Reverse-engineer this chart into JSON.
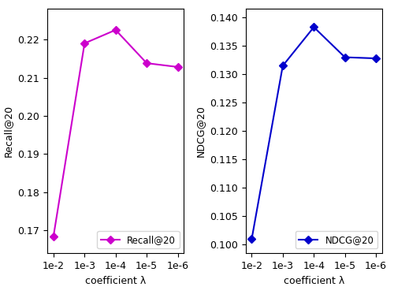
{
  "x_labels": [
    "1e-2",
    "1e-3",
    "1e-4",
    "1e-5",
    "1e-6"
  ],
  "recall_values": [
    0.1685,
    0.219,
    0.2225,
    0.2138,
    0.2128
  ],
  "ndcg_values": [
    0.101,
    0.1315,
    0.1383,
    0.133,
    0.1328
  ],
  "recall_color": "#cc00cc",
  "ndcg_color": "#0000cc",
  "recall_ylabel": "Recall@20",
  "ndcg_ylabel": "NDCG@20",
  "xlabel": "coefficient λ",
  "recall_legend": "Recall@20",
  "ndcg_legend": "NDCG@20",
  "recall_ylim": [
    0.164,
    0.228
  ],
  "ndcg_ylim": [
    0.0985,
    0.1415
  ],
  "recall_yticks": [
    0.17,
    0.18,
    0.19,
    0.2,
    0.21,
    0.22
  ],
  "ndcg_yticks": [
    0.1,
    0.105,
    0.11,
    0.115,
    0.12,
    0.125,
    0.13,
    0.135,
    0.14
  ],
  "marker": "D",
  "linewidth": 1.5,
  "markersize": 5
}
